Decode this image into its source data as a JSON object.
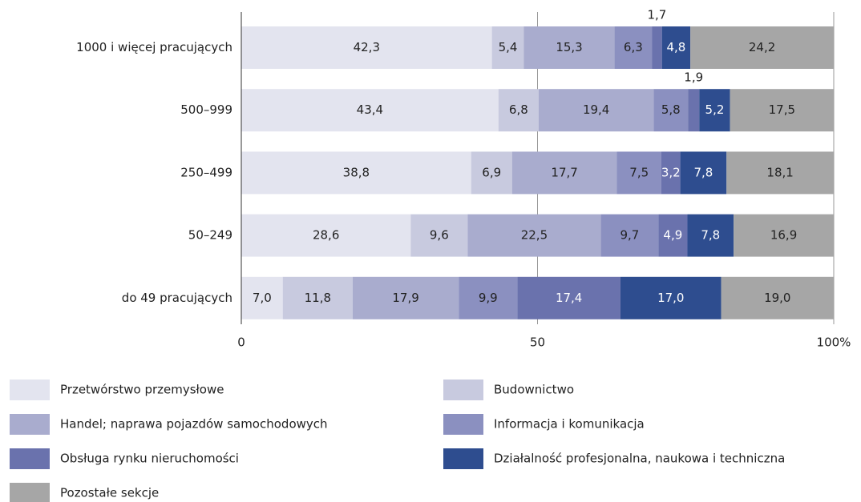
{
  "chart_data": {
    "type": "stacked-bar-horizontal",
    "categories": [
      "1000 i więcej pracujących",
      "500–999",
      "250–499",
      "50–249",
      "do 49 pracujących"
    ],
    "series": [
      {
        "name": "Przetwórstwo przemysłowe",
        "color": "#e3e4ef",
        "values": [
          42.3,
          43.4,
          38.8,
          28.6,
          7.0
        ],
        "value_labels": [
          "42,3",
          "43,4",
          "38,8",
          "28,6",
          "7,0"
        ]
      },
      {
        "name": "Budownictwo",
        "color": "#c8cadf",
        "values": [
          5.4,
          6.8,
          6.9,
          9.6,
          11.8
        ],
        "value_labels": [
          "5,4",
          "6,8",
          "6,9",
          "9,6",
          "11,8"
        ]
      },
      {
        "name": "Handel; naprawa pojazdów samochodowych",
        "color": "#a9acce",
        "values": [
          15.3,
          19.4,
          17.7,
          22.5,
          17.9
        ],
        "value_labels": [
          "15,3",
          "19,4",
          "17,7",
          "22,5",
          "17,9"
        ]
      },
      {
        "name": "Informacja i komunikacja",
        "color": "#8b90c0",
        "values": [
          6.3,
          5.8,
          7.5,
          9.7,
          9.9
        ],
        "value_labels": [
          "6,3",
          "5,8",
          "7,5",
          "9,7",
          "9,9"
        ]
      },
      {
        "name": "Obsługa rynku nieruchomości",
        "color": "#6a72ad",
        "values": [
          1.7,
          1.9,
          3.2,
          4.9,
          17.4
        ],
        "value_labels": [
          "1,7",
          "1,9",
          "3,2",
          "4,9",
          "17,4"
        ]
      },
      {
        "name": "Działalność profesjonalna, naukowa i techniczna",
        "color": "#2e4d8f",
        "values": [
          4.8,
          5.2,
          7.8,
          7.8,
          17.0
        ],
        "value_labels": [
          "4,8",
          "5,2",
          "7,8",
          "7,8",
          "17,0"
        ]
      },
      {
        "name": "Pozostałe sekcje",
        "color": "#a6a6a6",
        "values": [
          24.2,
          17.5,
          18.1,
          16.9,
          19.0
        ],
        "value_labels": [
          "24,2",
          "17,5",
          "18,1",
          "16,9",
          "19,0"
        ]
      }
    ],
    "xlim": [
      0,
      100
    ],
    "xticks": [
      0,
      50,
      {
        "value": 100,
        "label": "100%"
      }
    ],
    "grid": true
  }
}
